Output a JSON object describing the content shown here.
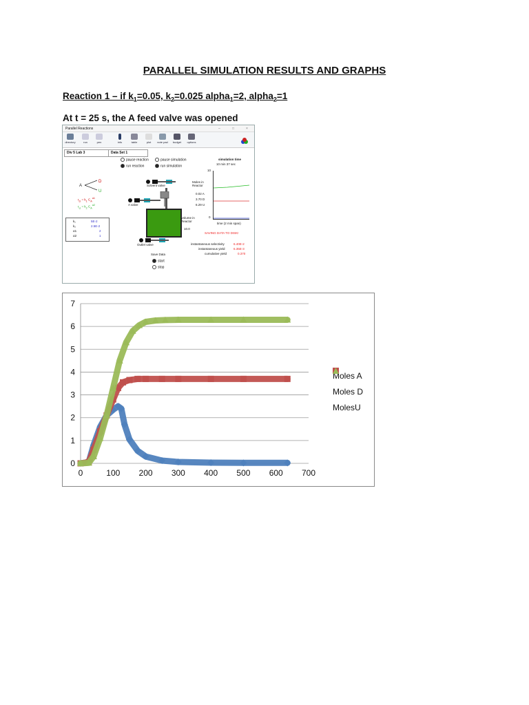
{
  "doc": {
    "title": "PARALLEL SIMULATION RESULTS AND GRAPHS",
    "subhead_text": "Reaction 1 – if k1=0.05, k2=0.025 alpha1=2, alpha2=1",
    "note": "At t = 25 s, the A feed valve was opened"
  },
  "window": {
    "title": "Parallel Reactions",
    "toolbar": [
      "directory",
      "run",
      "pen",
      "info",
      "table",
      "plot",
      "note pad",
      "budget",
      "options"
    ],
    "tab_left": "Div 5 Lab 3",
    "tab_right": "Data Set 1",
    "radios": {
      "pause_reaction": "pause reaction",
      "pause_simulation": "pause simulation",
      "run_reaction": "run reaction",
      "run_simulation": "run simulation"
    },
    "sim_time_label": "simulation time",
    "sim_time_value": "10  min   37  sec",
    "solvent_valve": "Solvent valve",
    "a_valve": "A valve",
    "outlet_valve": "Outlet valve",
    "moles_label": "Moles in Reactor",
    "moles_a": "0.02 A",
    "moles_d": "3.70 D",
    "moles_u": "6.29 U",
    "volume_label": "Volume in Reactor",
    "volume_value": "10.0",
    "axis_top": "10",
    "axis_zero": "0",
    "time_span": "time (2 min span)",
    "saving": "SAVING DATA TO DISK!",
    "inst_sel_label": "instantaneous selectivity",
    "inst_sel_value": "6.40E-2",
    "inst_yield_label": "instantaneous yield",
    "inst_yield_value": "6.35E-3",
    "cum_yield_label": "cumulative yield",
    "cum_yield_value": "0.370",
    "save_data": "Save Data",
    "start": "start",
    "stop": "stop",
    "k_rows": [
      [
        "k₁",
        "5E-2"
      ],
      [
        "k₂",
        "2.5E-2"
      ],
      [
        "α1",
        "2"
      ],
      [
        "α2",
        "1"
      ]
    ]
  },
  "colors": {
    "a": "#4f81bd",
    "d": "#c0504d",
    "u": "#9bbb59"
  },
  "chart_data": {
    "type": "scatter",
    "xlim": [
      0,
      700
    ],
    "ylim": [
      0,
      7
    ],
    "xticks": [
      0,
      100,
      200,
      300,
      400,
      500,
      600,
      700
    ],
    "yticks": [
      0,
      1,
      2,
      3,
      4,
      5,
      6,
      7
    ],
    "grid": "horizontal",
    "legend_position": "right",
    "series": [
      {
        "name": "Moles A",
        "marker": "diamond",
        "x": [
          0,
          25,
          40,
          60,
          80,
          100,
          115,
          125,
          135,
          150,
          175,
          200,
          250,
          300,
          400,
          500,
          635
        ],
        "y": [
          0,
          0.05,
          0.8,
          1.6,
          2.1,
          2.35,
          2.5,
          2.4,
          1.7,
          1.05,
          0.55,
          0.3,
          0.12,
          0.06,
          0.03,
          0.02,
          0.02
        ]
      },
      {
        "name": "Moles D",
        "marker": "square",
        "x": [
          0,
          25,
          40,
          60,
          80,
          100,
          115,
          130,
          150,
          175,
          200,
          250,
          300,
          400,
          500,
          635
        ],
        "y": [
          0,
          0.05,
          0.6,
          1.4,
          2.1,
          2.8,
          3.3,
          3.55,
          3.65,
          3.7,
          3.7,
          3.7,
          3.7,
          3.7,
          3.7,
          3.7
        ]
      },
      {
        "name": "MolesU",
        "marker": "triangle",
        "x": [
          0,
          25,
          40,
          60,
          80,
          100,
          120,
          140,
          160,
          180,
          200,
          230,
          260,
          300,
          400,
          500,
          635
        ],
        "y": [
          0,
          0.02,
          0.3,
          1.1,
          2.1,
          3.3,
          4.5,
          5.3,
          5.8,
          6.05,
          6.2,
          6.26,
          6.28,
          6.29,
          6.29,
          6.29,
          6.29
        ]
      }
    ]
  }
}
